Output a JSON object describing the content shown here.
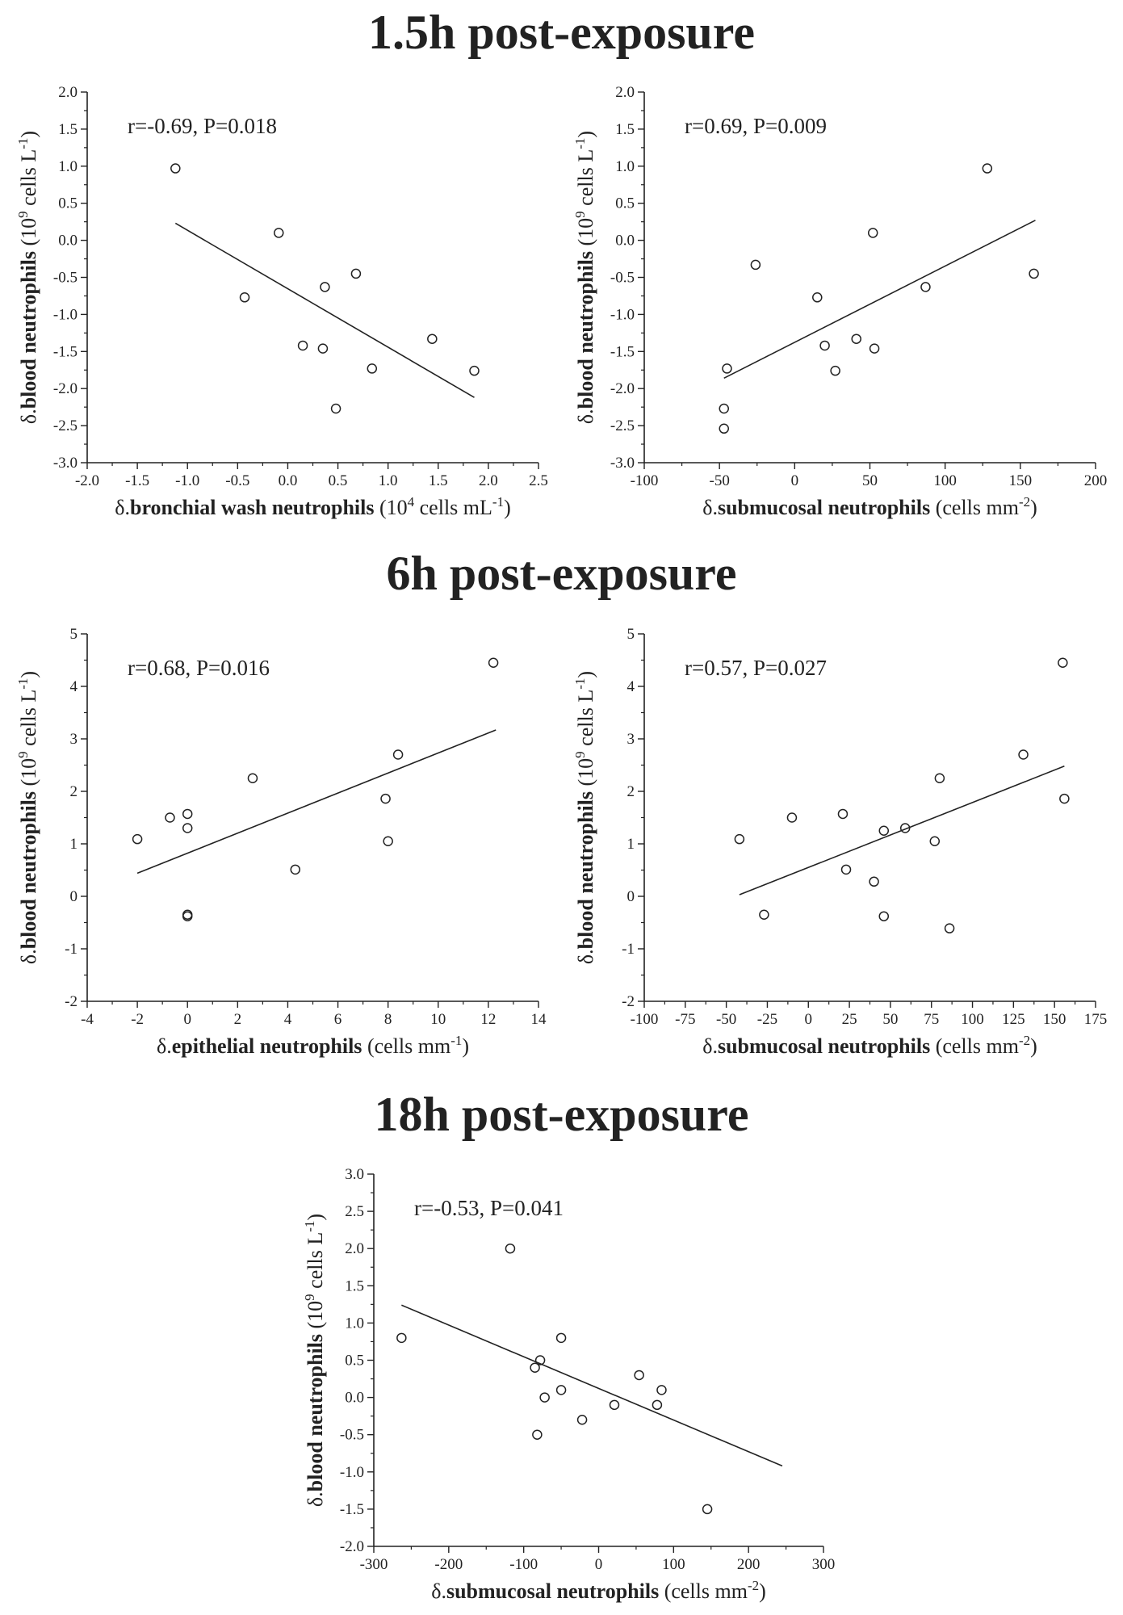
{
  "sections": [
    {
      "title": "1.5h post-exposure"
    },
    {
      "title": "6h post-exposure"
    },
    {
      "title": "18h post-exposure"
    }
  ],
  "chart_data": [
    {
      "type": "scatter",
      "section": "1.5h post-exposure",
      "annotation": "r=-0.69, P=0.018",
      "xlabel": {
        "prefix": "δ.",
        "bold": "bronchial wash neutrophils",
        "units_pre": " (10",
        "units_sup": "4",
        "units_post": " cells mL",
        "units_sup2": "-1",
        "units_end": ")"
      },
      "ylabel": {
        "prefix": "δ.",
        "bold": "blood neutrophils",
        "units_pre": " (10",
        "units_sup": "9",
        "units_post": " cells L",
        "units_sup2": "-1",
        "units_end": ")"
      },
      "xlim": [
        -2.0,
        2.5
      ],
      "ylim": [
        -3.0,
        2.0
      ],
      "xticks": [
        "-2.0",
        "-1.5",
        "-1.0",
        "-0.5",
        "0.0",
        "0.5",
        "1.0",
        "1.5",
        "2.0",
        "2.5"
      ],
      "xtick_values": [
        -2.0,
        -1.5,
        -1.0,
        -0.5,
        0.0,
        0.5,
        1.0,
        1.5,
        2.0,
        2.5
      ],
      "yticks": [
        "2.0",
        "1.5",
        "1.0",
        "0.5",
        "0.0",
        "-0.5",
        "-1.0",
        "-1.5",
        "-2.0",
        "-2.5",
        "-3.0"
      ],
      "ytick_values": [
        2.0,
        1.5,
        1.0,
        0.5,
        0.0,
        -0.5,
        -1.0,
        -1.5,
        -2.0,
        -2.5,
        -3.0
      ],
      "points": [
        {
          "x": -1.12,
          "y": 0.97
        },
        {
          "x": -0.09,
          "y": 0.1
        },
        {
          "x": -0.43,
          "y": -0.77
        },
        {
          "x": 0.37,
          "y": -0.63
        },
        {
          "x": 0.68,
          "y": -0.45
        },
        {
          "x": 0.15,
          "y": -1.42
        },
        {
          "x": 0.35,
          "y": -1.46
        },
        {
          "x": 0.84,
          "y": -1.73
        },
        {
          "x": 1.44,
          "y": -1.33
        },
        {
          "x": 1.86,
          "y": -1.76
        },
        {
          "x": 0.48,
          "y": -2.27
        }
      ],
      "fit": {
        "x": [
          -1.12,
          1.86
        ],
        "y": [
          0.23,
          -2.12
        ]
      }
    },
    {
      "type": "scatter",
      "section": "1.5h post-exposure",
      "annotation": "r=0.69, P=0.009",
      "xlabel": {
        "prefix": "δ.",
        "bold": "submucosal neutrophils",
        "units_pre": " (cells mm",
        "units_sup": "-2",
        "units_post": ")",
        "units_sup2": "",
        "units_end": ""
      },
      "ylabel": {
        "prefix": "δ.",
        "bold": "blood neutrophils",
        "units_pre": " (10",
        "units_sup": "9",
        "units_post": " cells L",
        "units_sup2": "-1",
        "units_end": ")"
      },
      "xlim": [
        -100,
        200
      ],
      "ylim": [
        -3.0,
        2.0
      ],
      "xticks": [
        "-100",
        "-50",
        "0",
        "50",
        "100",
        "150",
        "200"
      ],
      "xtick_values": [
        -100,
        -50,
        0,
        50,
        100,
        150,
        200
      ],
      "yticks": [
        "2.0",
        "1.5",
        "1.0",
        "0.5",
        "0.0",
        "-0.5",
        "-1.0",
        "-1.5",
        "-2.0",
        "-2.5",
        "-3.0"
      ],
      "ytick_values": [
        2.0,
        1.5,
        1.0,
        0.5,
        0.0,
        -0.5,
        -1.0,
        -1.5,
        -2.0,
        -2.5,
        -3.0
      ],
      "points": [
        {
          "x": 128,
          "y": 0.97
        },
        {
          "x": 52,
          "y": 0.1
        },
        {
          "x": -26,
          "y": -0.33
        },
        {
          "x": 159,
          "y": -0.45
        },
        {
          "x": 87,
          "y": -0.63
        },
        {
          "x": 15,
          "y": -0.77
        },
        {
          "x": 41,
          "y": -1.33
        },
        {
          "x": 20,
          "y": -1.42
        },
        {
          "x": 53,
          "y": -1.46
        },
        {
          "x": -45,
          "y": -1.73
        },
        {
          "x": 27,
          "y": -1.76
        },
        {
          "x": -47,
          "y": -2.27
        },
        {
          "x": -47,
          "y": -2.54
        }
      ],
      "fit": {
        "x": [
          -47,
          160
        ],
        "y": [
          -1.86,
          0.27
        ]
      }
    },
    {
      "type": "scatter",
      "section": "6h post-exposure",
      "annotation": "r=0.68, P=0.016",
      "xlabel": {
        "prefix": "δ.",
        "bold": "epithelial neutrophils",
        "units_pre": " (cells mm",
        "units_sup": "-1",
        "units_post": ")",
        "units_sup2": "",
        "units_end": ""
      },
      "ylabel": {
        "prefix": "δ.",
        "bold": "blood neutrophils",
        "units_pre": " (10",
        "units_sup": "9",
        "units_post": " cells L",
        "units_sup2": "-1",
        "units_end": ")"
      },
      "xlim": [
        -4,
        14
      ],
      "ylim": [
        -2,
        5
      ],
      "xticks": [
        "-4",
        "-2",
        "0",
        "2",
        "4",
        "6",
        "8",
        "10",
        "12",
        "14"
      ],
      "xtick_values": [
        -4,
        -2,
        0,
        2,
        4,
        6,
        8,
        10,
        12,
        14
      ],
      "yticks": [
        "5",
        "4",
        "3",
        "2",
        "1",
        "0",
        "-1",
        "-2"
      ],
      "ytick_values": [
        5,
        4,
        3,
        2,
        1,
        0,
        -1,
        -2
      ],
      "points": [
        {
          "x": 12.2,
          "y": 4.45
        },
        {
          "x": 8.4,
          "y": 2.7
        },
        {
          "x": 2.6,
          "y": 2.25
        },
        {
          "x": 7.9,
          "y": 1.86
        },
        {
          "x": 0.0,
          "y": 1.57
        },
        {
          "x": -0.7,
          "y": 1.5
        },
        {
          "x": 0.0,
          "y": 1.3
        },
        {
          "x": -2.0,
          "y": 1.09
        },
        {
          "x": 8.0,
          "y": 1.05
        },
        {
          "x": 4.3,
          "y": 0.51
        },
        {
          "x": 0.0,
          "y": -0.35
        },
        {
          "x": 0.0,
          "y": -0.38
        }
      ],
      "fit": {
        "x": [
          -2.0,
          12.3
        ],
        "y": [
          0.44,
          3.17
        ]
      }
    },
    {
      "type": "scatter",
      "section": "6h post-exposure",
      "annotation": "r=0.57, P=0.027",
      "xlabel": {
        "prefix": "δ.",
        "bold": "submucosal neutrophils",
        "units_pre": " (cells mm",
        "units_sup": "-2",
        "units_post": ")",
        "units_sup2": "",
        "units_end": ""
      },
      "ylabel": {
        "prefix": "δ.",
        "bold": "blood neutrophils",
        "units_pre": " (10",
        "units_sup": "9",
        "units_post": " cells L",
        "units_sup2": "-1",
        "units_end": ")"
      },
      "xlim": [
        -100,
        175
      ],
      "ylim": [
        -2,
        5
      ],
      "xticks": [
        "-100",
        "-75",
        "-50",
        "-25",
        "0",
        "25",
        "50",
        "75",
        "100",
        "125",
        "150",
        "175"
      ],
      "xtick_values": [
        -100,
        -75,
        -50,
        -25,
        0,
        25,
        50,
        75,
        100,
        125,
        150,
        175
      ],
      "yticks": [
        "5",
        "4",
        "3",
        "2",
        "1",
        "0",
        "-1",
        "-2"
      ],
      "ytick_values": [
        5,
        4,
        3,
        2,
        1,
        0,
        -1,
        -2
      ],
      "points": [
        {
          "x": 155,
          "y": 4.45
        },
        {
          "x": 131,
          "y": 2.7
        },
        {
          "x": 80,
          "y": 2.25
        },
        {
          "x": 156,
          "y": 1.86
        },
        {
          "x": 21,
          "y": 1.57
        },
        {
          "x": -10,
          "y": 1.5
        },
        {
          "x": 59,
          "y": 1.3
        },
        {
          "x": 46,
          "y": 1.25
        },
        {
          "x": -42,
          "y": 1.09
        },
        {
          "x": 77,
          "y": 1.05
        },
        {
          "x": 23,
          "y": 0.51
        },
        {
          "x": 40,
          "y": 0.28
        },
        {
          "x": -27,
          "y": -0.35
        },
        {
          "x": 46,
          "y": -0.38
        },
        {
          "x": 86,
          "y": -0.61
        }
      ],
      "fit": {
        "x": [
          -42,
          156
        ],
        "y": [
          0.03,
          2.48
        ]
      }
    },
    {
      "type": "scatter",
      "section": "18h post-exposure",
      "annotation": "r=-0.53, P=0.041",
      "xlabel": {
        "prefix": "δ.",
        "bold": "submucosal neutrophils",
        "units_pre": " (cells mm",
        "units_sup": "-2",
        "units_post": ")",
        "units_sup2": "",
        "units_end": ""
      },
      "ylabel": {
        "prefix": "δ.",
        "bold": "blood neutrophils",
        "units_pre": " (10",
        "units_sup": "9",
        "units_post": " cells L",
        "units_sup2": "-1",
        "units_end": ")"
      },
      "xlim": [
        -300,
        300
      ],
      "ylim": [
        -2.0,
        3.0
      ],
      "xticks": [
        "-300",
        "-200",
        "-100",
        "0",
        "100",
        "200",
        "300"
      ],
      "xtick_values": [
        -300,
        -200,
        -100,
        0,
        100,
        200,
        300
      ],
      "yticks": [
        "3.0",
        "2.5",
        "2.0",
        "1.5",
        "1.0",
        "0.5",
        "0.0",
        "-0.5",
        "-1.0",
        "-1.5",
        "-2.0"
      ],
      "ytick_values": [
        3.0,
        2.5,
        2.0,
        1.5,
        1.0,
        0.5,
        0.0,
        -0.5,
        -1.0,
        -1.5,
        -2.0
      ],
      "points": [
        {
          "x": -118,
          "y": 2.0
        },
        {
          "x": -263,
          "y": 0.8
        },
        {
          "x": -50,
          "y": 0.8
        },
        {
          "x": -78,
          "y": 0.5
        },
        {
          "x": -85,
          "y": 0.4
        },
        {
          "x": 54,
          "y": 0.3
        },
        {
          "x": 84,
          "y": 0.1
        },
        {
          "x": -50,
          "y": 0.1
        },
        {
          "x": -72,
          "y": 0.0
        },
        {
          "x": 21,
          "y": -0.1
        },
        {
          "x": 78,
          "y": -0.1
        },
        {
          "x": -22,
          "y": -0.3
        },
        {
          "x": -82,
          "y": -0.5
        },
        {
          "x": 145,
          "y": -1.5
        }
      ],
      "fit": {
        "x": [
          -263,
          245
        ],
        "y": [
          1.24,
          -0.92
        ]
      }
    }
  ]
}
